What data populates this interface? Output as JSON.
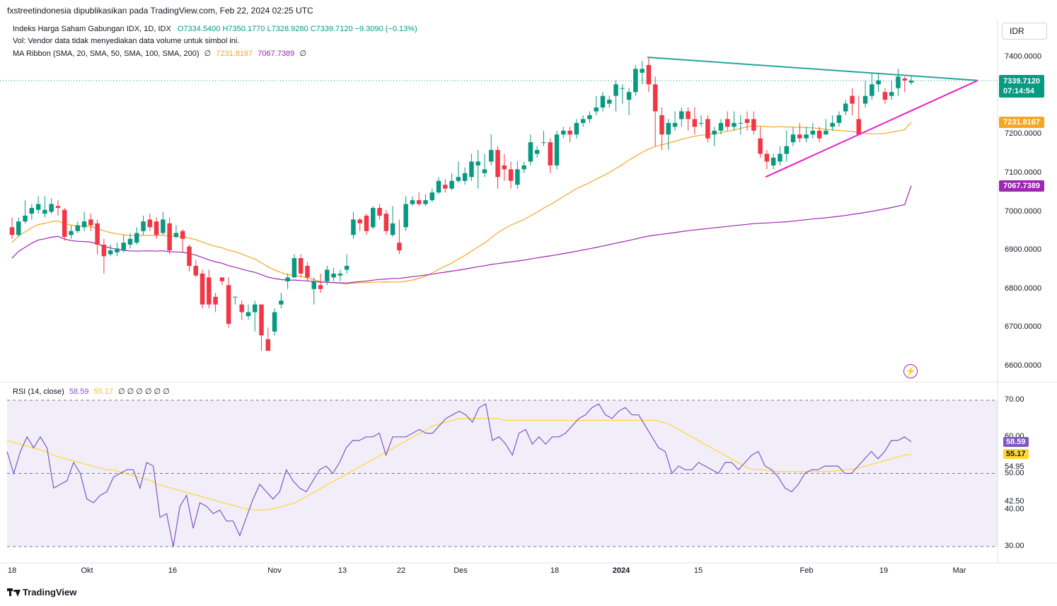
{
  "header": {
    "publisher_line": "fxstreetindonesia dipublikasikan pada TradingView.com, Feb 22, 2024 02:25 UTC"
  },
  "legend": {
    "symbol": "Indeks Harga Saham Gabungan IDX, 1D, IDX",
    "ohlc": "O7334.5400  H7350.1770  L7328.9280  C7339.7120  −9.3090 (−0.13%)",
    "volume_note": "Vol: Vendor data tidak menyediakan data volume untuk simbol ini.",
    "ma_ribbon_label": "MA Ribbon (SMA, 20, SMA, 50, SMA, 100, SMA, 200)",
    "ma_ribbon_zero1": "∅",
    "ma_ribbon_val1": "7231.8167",
    "ma_ribbon_val2": "7067.7389",
    "ma_ribbon_zero2": "∅",
    "rsi_label": "RSI (14, close)",
    "rsi_val": "58.59",
    "rsi_ma_val": "55.17",
    "rsi_zeros": "∅ ∅ ∅ ∅ ∅ ∅"
  },
  "currency_button": "IDR",
  "price_badges": {
    "last_price": "7339.7120",
    "countdown": "07:14:54",
    "ma_fast": "7231.8167",
    "ma_slow": "7067.7389"
  },
  "rsi_badges": {
    "rsi": "58.59",
    "rsi_ma": "55.17",
    "extra": "54.95",
    "extra2": "42.50"
  },
  "price_axis_ticks": [
    "7400.0000",
    "7300.0000",
    "7200.0000",
    "7100.0000",
    "7000.0000",
    "6900.0000",
    "6800.0000",
    "6700.0000",
    "6600.0000"
  ],
  "rsi_axis_ticks": [
    "70.00",
    "60.00",
    "50.00",
    "40.00",
    "30.00"
  ],
  "time_axis_ticks": [
    "18",
    "Okt",
    "16",
    "Nov",
    "13",
    "22",
    "Des",
    "18",
    "2024",
    "15",
    "Feb",
    "19",
    "Mar"
  ],
  "footer_brand": "TradingView",
  "colors": {
    "up": "#089981",
    "down": "#f23645",
    "ma_fast": "#f5a623",
    "ma_slow": "#9c27b0",
    "upper_trendline": "#26a69a",
    "lower_trendline": "#e91ec8",
    "rsi_line": "#7e57c2",
    "rsi_ma": "#fdd835",
    "rsi_band": "#7e57c2"
  },
  "chart_data": [
    {
      "type": "candlestick",
      "title": "Indeks Harga Saham Gabungan IDX, 1D, IDX",
      "ylim": [
        6580,
        7440
      ],
      "y_ticks": [
        7400,
        7300,
        7200,
        7100,
        7000,
        6900,
        6800,
        6700,
        6600
      ],
      "x_labels": [
        "18",
        "Okt",
        "16",
        "Nov",
        "13",
        "22",
        "Des",
        "18",
        "2024",
        "15",
        "Feb",
        "19",
        "Mar"
      ],
      "last_price": 7339.712,
      "candles": [
        [
          6960,
          6940,
          6985,
          6930
        ],
        [
          6940,
          6975,
          6985,
          6935
        ],
        [
          6975,
          6990,
          7030,
          6970
        ],
        [
          6995,
          7010,
          7020,
          6980
        ],
        [
          7005,
          7020,
          7040,
          6995
        ],
        [
          6995,
          7005,
          7040,
          6985
        ],
        [
          7000,
          7020,
          7035,
          6995
        ],
        [
          7015,
          7010,
          7030,
          6990
        ],
        [
          7005,
          6935,
          7010,
          6925
        ],
        [
          6940,
          6950,
          6965,
          6930
        ],
        [
          6950,
          6965,
          6975,
          6945
        ],
        [
          6960,
          6975,
          7000,
          6950
        ],
        [
          6980,
          6965,
          6995,
          6950
        ],
        [
          6970,
          6915,
          6980,
          6890
        ],
        [
          6915,
          6885,
          6930,
          6840
        ],
        [
          6890,
          6900,
          6915,
          6885
        ],
        [
          6895,
          6905,
          6920,
          6885
        ],
        [
          6900,
          6920,
          6940,
          6895
        ],
        [
          6915,
          6930,
          6945,
          6905
        ],
        [
          6920,
          6945,
          6960,
          6915
        ],
        [
          6950,
          6975,
          6990,
          6940
        ],
        [
          6980,
          6960,
          6995,
          6950
        ],
        [
          6975,
          6940,
          6985,
          6930
        ],
        [
          6945,
          6980,
          7000,
          6940
        ],
        [
          6970,
          6900,
          6985,
          6890
        ],
        [
          6935,
          6945,
          6965,
          6930
        ],
        [
          6950,
          6930,
          6955,
          6895
        ],
        [
          6910,
          6860,
          6915,
          6845
        ],
        [
          6860,
          6835,
          6875,
          6830
        ],
        [
          6840,
          6760,
          6850,
          6750
        ],
        [
          6830,
          6760,
          6850,
          6750
        ],
        [
          6780,
          6760,
          6790,
          6740
        ],
        [
          6830,
          6820,
          6830,
          6810
        ],
        [
          6810,
          6710,
          6830,
          6700
        ],
        [
          6780,
          6780,
          6780,
          6760
        ],
        [
          6760,
          6740,
          6770,
          6720
        ],
        [
          6730,
          6740,
          6760,
          6720
        ],
        [
          6740,
          6760,
          6770,
          6690
        ],
        [
          6760,
          6680,
          6760,
          6640
        ],
        [
          6670,
          6640,
          6700,
          6640
        ],
        [
          6690,
          6740,
          6750,
          6680
        ],
        [
          6760,
          6770,
          6790,
          6750
        ],
        [
          6820,
          6830,
          6840,
          6800
        ],
        [
          6830,
          6880,
          6890,
          6830
        ],
        [
          6880,
          6840,
          6890,
          6830
        ],
        [
          6860,
          6830,
          6870,
          6820
        ],
        [
          6800,
          6820,
          6830,
          6760
        ],
        [
          6810,
          6800,
          6840,
          6790
        ],
        [
          6820,
          6850,
          6860,
          6810
        ],
        [
          6830,
          6840,
          6855,
          6820
        ],
        [
          6835,
          6840,
          6850,
          6820
        ],
        [
          6850,
          6860,
          6890,
          6840
        ],
        [
          6940,
          6980,
          7000,
          6930
        ],
        [
          6980,
          6970,
          6985,
          6950
        ],
        [
          6990,
          6950,
          6995,
          6940
        ],
        [
          6960,
          7010,
          7015,
          6955
        ],
        [
          7010,
          6990,
          7020,
          6980
        ],
        [
          6995,
          6950,
          7005,
          6940
        ],
        [
          6940,
          6970,
          7015,
          6935
        ],
        [
          6920,
          6900,
          6980,
          6890
        ],
        [
          6960,
          7020,
          7040,
          6950
        ],
        [
          7020,
          7030,
          7040,
          7015
        ],
        [
          7030,
          7020,
          7050,
          7015
        ],
        [
          7020,
          7030,
          7045,
          7015
        ],
        [
          7030,
          7050,
          7060,
          7025
        ],
        [
          7050,
          7080,
          7090,
          7045
        ],
        [
          7070,
          7060,
          7085,
          7050
        ],
        [
          7060,
          7080,
          7100,
          7055
        ],
        [
          7080,
          7090,
          7130,
          7075
        ],
        [
          7080,
          7100,
          7115,
          7070
        ],
        [
          7090,
          7130,
          7150,
          7080
        ],
        [
          7120,
          7130,
          7160,
          7060
        ],
        [
          7100,
          7110,
          7150,
          7090
        ],
        [
          7130,
          7160,
          7200,
          7120
        ],
        [
          7160,
          7090,
          7170,
          7060
        ],
        [
          7120,
          7110,
          7150,
          7080
        ],
        [
          7110,
          7080,
          7130,
          7060
        ],
        [
          7070,
          7110,
          7130,
          7060
        ],
        [
          7110,
          7120,
          7130,
          7100
        ],
        [
          7130,
          7180,
          7200,
          7120
        ],
        [
          7150,
          7160,
          7170,
          7140
        ],
        [
          7180,
          7180,
          7210,
          7170
        ],
        [
          7180,
          7120,
          7190,
          7100
        ],
        [
          7120,
          7200,
          7210,
          7110
        ],
        [
          7200,
          7210,
          7220,
          7190
        ],
        [
          7210,
          7200,
          7220,
          7180
        ],
        [
          7200,
          7230,
          7240,
          7190
        ],
        [
          7230,
          7240,
          7250,
          7220
        ],
        [
          7240,
          7250,
          7260,
          7230
        ],
        [
          7260,
          7270,
          7300,
          7250
        ],
        [
          7270,
          7300,
          7310,
          7260
        ],
        [
          7280,
          7290,
          7300,
          7270
        ],
        [
          7300,
          7330,
          7340,
          7260
        ],
        [
          7320,
          7320,
          7330,
          7280
        ],
        [
          7290,
          7310,
          7320,
          7250
        ],
        [
          7310,
          7370,
          7380,
          7300
        ],
        [
          7360,
          7370,
          7390,
          7330
        ],
        [
          7380,
          7330,
          7400,
          7310
        ],
        [
          7330,
          7260,
          7350,
          7170
        ],
        [
          7250,
          7200,
          7270,
          7160
        ],
        [
          7200,
          7230,
          7240,
          7160
        ],
        [
          7220,
          7230,
          7260,
          7210
        ],
        [
          7240,
          7260,
          7270,
          7220
        ],
        [
          7260,
          7240,
          7270,
          7210
        ],
        [
          7240,
          7220,
          7270,
          7200
        ],
        [
          7230,
          7230,
          7250,
          7220
        ],
        [
          7240,
          7190,
          7250,
          7180
        ],
        [
          7200,
          7210,
          7220,
          7170
        ],
        [
          7210,
          7230,
          7240,
          7200
        ],
        [
          7240,
          7220,
          7260,
          7210
        ],
        [
          7220,
          7230,
          7260,
          7210
        ],
        [
          7230,
          7230,
          7250,
          7200
        ],
        [
          7240,
          7230,
          7260,
          7210
        ],
        [
          7240,
          7210,
          7260,
          7200
        ],
        [
          7190,
          7150,
          7220,
          7140
        ],
        [
          7150,
          7130,
          7160,
          7110
        ],
        [
          7120,
          7140,
          7150,
          7110
        ],
        [
          7130,
          7150,
          7170,
          7120
        ],
        [
          7150,
          7170,
          7210,
          7130
        ],
        [
          7180,
          7200,
          7220,
          7170
        ],
        [
          7200,
          7190,
          7230,
          7180
        ],
        [
          7190,
          7200,
          7220,
          7180
        ],
        [
          7200,
          7210,
          7230,
          7190
        ],
        [
          7210,
          7190,
          7220,
          7180
        ],
        [
          7200,
          7210,
          7240,
          7200
        ],
        [
          7220,
          7230,
          7250,
          7210
        ],
        [
          7230,
          7250,
          7260,
          7220
        ],
        [
          7260,
          7280,
          7290,
          7250
        ],
        [
          7300,
          7280,
          7320,
          7250
        ],
        [
          7240,
          7200,
          7300,
          7200
        ],
        [
          7280,
          7300,
          7340,
          7270
        ],
        [
          7300,
          7330,
          7360,
          7290
        ],
        [
          7330,
          7340,
          7360,
          7310
        ],
        [
          7310,
          7290,
          7320,
          7280
        ],
        [
          7300,
          7310,
          7340,
          7290
        ],
        [
          7320,
          7350,
          7370,
          7300
        ],
        [
          7345,
          7340,
          7350,
          7310
        ],
        [
          7334.54,
          7339.712,
          7350.177,
          7328.928
        ]
      ],
      "series": [
        {
          "name": "SMA 50",
          "last": 7231.8167
        },
        {
          "name": "SMA 200",
          "last": 7067.7389
        }
      ]
    },
    {
      "type": "line",
      "title": "RSI (14, close)",
      "ylim": [
        28,
        72
      ],
      "y_ticks": [
        70,
        60,
        50,
        40,
        30
      ],
      "bands": [
        30,
        50,
        70
      ],
      "series": [
        {
          "name": "RSI",
          "last": 58.59,
          "values": [
            56,
            50,
            56,
            60,
            57,
            60,
            57,
            46,
            47,
            48,
            53,
            50,
            43,
            42,
            44,
            45,
            49,
            50,
            51,
            51,
            46,
            53,
            52,
            38,
            39,
            30,
            41,
            44,
            35,
            42,
            41,
            39,
            40,
            37,
            37,
            33,
            38,
            43,
            47,
            45,
            43,
            45,
            51,
            48,
            46,
            45,
            48,
            51,
            52,
            50,
            53,
            57,
            59,
            59,
            60,
            60,
            61,
            55,
            60,
            60,
            60,
            61,
            62,
            61,
            61,
            63,
            65,
            66,
            67,
            66,
            64,
            68,
            69,
            59,
            60,
            58,
            55,
            61,
            62,
            58,
            60,
            58,
            60,
            60,
            61,
            63,
            65,
            66,
            68,
            69,
            66,
            65,
            67,
            68,
            66,
            66,
            63,
            60,
            57,
            56,
            50,
            52,
            51,
            51,
            53,
            52,
            51,
            50,
            53,
            53,
            51,
            53,
            55,
            56,
            52,
            51,
            49,
            46,
            45,
            47,
            50,
            51,
            51,
            52,
            52,
            52,
            50,
            50,
            52,
            54,
            56,
            54,
            56,
            59,
            59,
            60,
            58.59
          ]
        },
        {
          "name": "RSI-based MA",
          "last": 55.17,
          "values": [
            59,
            58.5,
            58,
            57.5,
            57,
            56.5,
            56,
            55,
            54.5,
            54,
            53.5,
            53,
            52.5,
            52,
            51.5,
            51,
            51,
            50.5,
            50,
            49.5,
            49,
            48.5,
            48,
            47,
            46.5,
            46,
            45.5,
            45,
            44.5,
            44,
            43.5,
            43,
            42.5,
            42,
            41.5,
            41,
            40.5,
            40.2,
            40,
            40,
            40.2,
            40.5,
            41,
            41.5,
            42,
            43,
            44,
            45,
            46,
            47,
            48,
            49,
            50,
            51,
            52,
            53,
            54,
            55,
            56,
            57,
            58,
            59,
            60,
            61,
            62,
            63,
            63.5,
            64,
            64.5,
            65,
            65,
            65,
            65,
            65,
            65,
            65,
            64.5,
            64.5,
            64.5,
            64.5,
            64.5,
            64.5,
            64.5,
            64.5,
            64.5,
            64.5,
            64.5,
            64.5,
            64.5,
            64.5,
            64.5,
            64.5,
            64.5,
            64.5,
            64.5,
            64.5,
            64.5,
            64.5,
            64.5,
            64.5,
            64,
            63.5,
            62.5,
            61.5,
            60.5,
            59.5,
            58.5,
            57.5,
            56.5,
            55.5,
            54.5,
            53.5,
            52.5,
            51.5,
            51,
            51,
            50.8,
            50.6,
            50.5,
            50.5,
            50.5,
            50.5,
            50.5,
            50.5,
            50.5,
            50.5,
            50.6,
            50.8,
            51,
            51.2,
            51.5,
            52,
            52.5,
            53,
            53.5,
            54,
            54.5,
            55,
            55.17
          ]
        }
      ]
    }
  ]
}
